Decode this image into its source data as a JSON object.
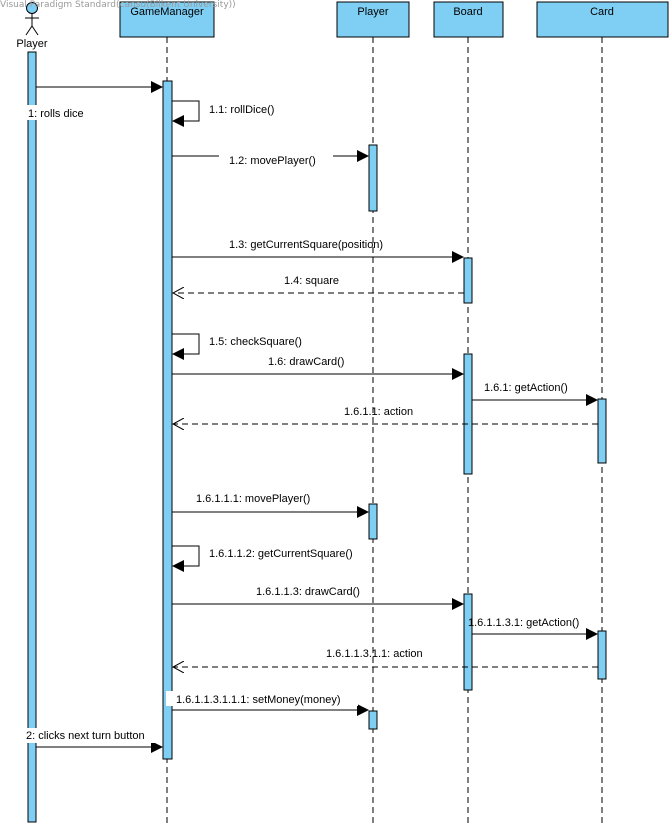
{
  "watermark": "Visual Paradigm Standard(cansu(Bilkent University))",
  "colors": {
    "header_fill": "#7FCFF5",
    "activation_fill": "#7FCFF5",
    "border": "#000000",
    "background": "#FFFFFF"
  },
  "lifelines": [
    {
      "id": "player_actor",
      "kind": "actor",
      "name": "Player"
    },
    {
      "id": "gm",
      "kind": "object",
      "name": "GameManager"
    },
    {
      "id": "player",
      "kind": "object",
      "name": "Player"
    },
    {
      "id": "board",
      "kind": "object",
      "name": "Board"
    },
    {
      "id": "card",
      "kind": "object",
      "name": "Card"
    }
  ],
  "messages": [
    {
      "label": "1: rolls dice",
      "from": "player_actor",
      "to": "gm",
      "kind": "sync"
    },
    {
      "label": "1.1: rollDice()",
      "from": "gm",
      "to": "gm",
      "kind": "self"
    },
    {
      "label": "1.2: movePlayer()",
      "from": "gm",
      "to": "player",
      "kind": "sync"
    },
    {
      "label": "1.3: getCurrentSquare(position)",
      "from": "gm",
      "to": "board",
      "kind": "sync"
    },
    {
      "label": "1.4: square",
      "from": "board",
      "to": "gm",
      "kind": "return"
    },
    {
      "label": "1.5: checkSquare()",
      "from": "gm",
      "to": "gm",
      "kind": "self"
    },
    {
      "label": "1.6: drawCard()",
      "from": "gm",
      "to": "board",
      "kind": "sync"
    },
    {
      "label": "1.6.1: getAction()",
      "from": "board",
      "to": "card",
      "kind": "sync"
    },
    {
      "label": "1.6.1.1: action",
      "from": "card",
      "to": "gm",
      "kind": "return"
    },
    {
      "label": "1.6.1.1.1: movePlayer()",
      "from": "gm",
      "to": "player",
      "kind": "sync"
    },
    {
      "label": "1.6.1.1.2: getCurrentSquare()",
      "from": "gm",
      "to": "gm",
      "kind": "self"
    },
    {
      "label": "1.6.1.1.3: drawCard()",
      "from": "gm",
      "to": "board",
      "kind": "sync"
    },
    {
      "label": "1.6.1.1.3.1: getAction()",
      "from": "board",
      "to": "card",
      "kind": "sync"
    },
    {
      "label": "1.6.1.1.3.1.1: action",
      "from": "card",
      "to": "gm",
      "kind": "return"
    },
    {
      "label": "1.6.1.1.3.1.1.1: setMoney(money)",
      "from": "gm",
      "to": "player",
      "kind": "sync"
    },
    {
      "label": "2: clicks next turn button",
      "from": "player_actor",
      "to": "gm",
      "kind": "sync"
    }
  ]
}
